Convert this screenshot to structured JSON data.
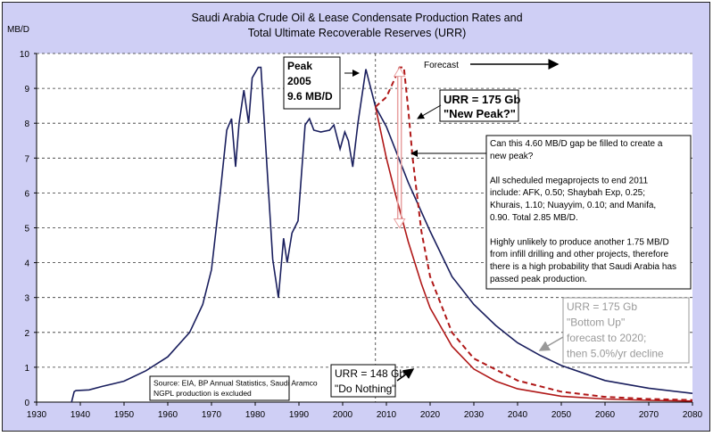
{
  "chart_data": {
    "type": "line",
    "title_line1": "Saudi Arabia Crude Oil & Lease Condensate Production Rates and",
    "title_line2": "Total Ultimate Recoverable Reserves (URR)",
    "ylabel": "MB/D",
    "xlim": [
      1930,
      2080
    ],
    "ylim": [
      0,
      10
    ],
    "xticks": [
      1930,
      1940,
      1950,
      1960,
      1970,
      1980,
      1990,
      2000,
      2010,
      2020,
      2030,
      2040,
      2050,
      2060,
      2070,
      2080
    ],
    "yticks": [
      0,
      1,
      2,
      3,
      4,
      5,
      6,
      7,
      8,
      9,
      10
    ],
    "grid": true,
    "forecast_start": 2007.5,
    "series": [
      {
        "id": "historical",
        "color": "#1a1f5e",
        "dash": false,
        "x": [
          1938,
          1938.6,
          1939,
          1942,
          1945,
          1950,
          1955,
          1960,
          1965,
          1968,
          1970,
          1972,
          1973.5,
          1974.6,
          1975.5,
          1976.3,
          1977.4,
          1978.5,
          1979.3,
          1980.7,
          1981.3,
          1982.7,
          1984,
          1985.3,
          1986.5,
          1987.3,
          1988.4,
          1989.8,
          1991.4,
          1992.4,
          1993.4,
          1995,
          1997,
          1998,
          1999.4,
          2000.5,
          2001.3,
          2002.3,
          2003.5,
          2005.3,
          2007.5
        ],
        "y": [
          0,
          0.3,
          0.33,
          0.35,
          0.45,
          0.6,
          0.9,
          1.3,
          2.0,
          2.8,
          3.8,
          6.0,
          7.8,
          8.13,
          6.75,
          8.0,
          8.95,
          8.0,
          9.3,
          9.6,
          9.6,
          6.75,
          4.1,
          3.0,
          4.7,
          4.0,
          4.85,
          5.2,
          7.95,
          8.13,
          7.8,
          7.75,
          7.8,
          7.95,
          7.26,
          7.75,
          7.5,
          6.75,
          8.0,
          9.55,
          8.47
        ]
      },
      {
        "id": "bottom-up",
        "color": "#1a1f5e",
        "dash": false,
        "x": [
          2007.5,
          2010,
          2015,
          2020,
          2025,
          2030,
          2035,
          2040,
          2045,
          2050,
          2060,
          2070,
          2080
        ],
        "y": [
          8.47,
          7.9,
          6.3,
          4.9,
          3.6,
          2.8,
          2.2,
          1.7,
          1.35,
          1.05,
          0.62,
          0.4,
          0.25
        ]
      },
      {
        "id": "do-nothing",
        "color": "#b01818",
        "dash": false,
        "x": [
          2007.5,
          2010,
          2012,
          2015,
          2018,
          2020,
          2025,
          2030,
          2035,
          2040,
          2050,
          2060,
          2070,
          2080
        ],
        "y": [
          8.47,
          7.0,
          6.0,
          4.6,
          3.4,
          2.7,
          1.6,
          0.95,
          0.6,
          0.38,
          0.17,
          0.09,
          0.05,
          0.03
        ]
      },
      {
        "id": "new-peak",
        "color": "#b01818",
        "dash": true,
        "x": [
          2007.5,
          2010,
          2012,
          2013,
          2014,
          2015,
          2016,
          2018,
          2020,
          2025,
          2030,
          2040,
          2050,
          2060,
          2070,
          2080
        ],
        "y": [
          8.47,
          8.75,
          9.3,
          9.6,
          9.6,
          8.4,
          7.0,
          4.9,
          3.6,
          2.0,
          1.25,
          0.62,
          0.3,
          0.15,
          0.09,
          0.06
        ]
      }
    ],
    "gap_arrow": {
      "year": 2013,
      "from": 9.6,
      "to": 5.0,
      "color": "#e8a0a0"
    },
    "annotations": {
      "peak": [
        "Peak",
        "2005",
        "9.6 MB/D"
      ],
      "forecast": "Forecast",
      "new_peak": [
        "URR = 175 Gb",
        "\"New Peak?\""
      ],
      "gap": [
        "Can this 4.60 MB/D gap be filled to create a",
        "new peak?",
        "",
        "All scheduled megaprojects to end 2011",
        "include: AFK, 0.50; Shaybah Exp, 0.25;",
        "Khurais, 1.10; Nuayyim, 0.10; and Manifa,",
        "0.90.  Total 2.85 MB/D.",
        "",
        "Highly unlikely to produce another 1.75 MB/D",
        "from infill drilling and other projects, therefore",
        "there is a high probability that Saudi Arabia has",
        "passed peak production."
      ],
      "bottom_up": [
        "URR = 175 Gb",
        "\"Bottom Up\"",
        "forecast to 2020;",
        "then 5.0%/yr decline"
      ],
      "do_nothing": [
        "URR = 148 Gb",
        "\"Do Nothing\""
      ],
      "source": [
        "Source: EIA, BP Annual Statistics, Saudi Aramco",
        "NGPL production is excluded"
      ]
    }
  }
}
